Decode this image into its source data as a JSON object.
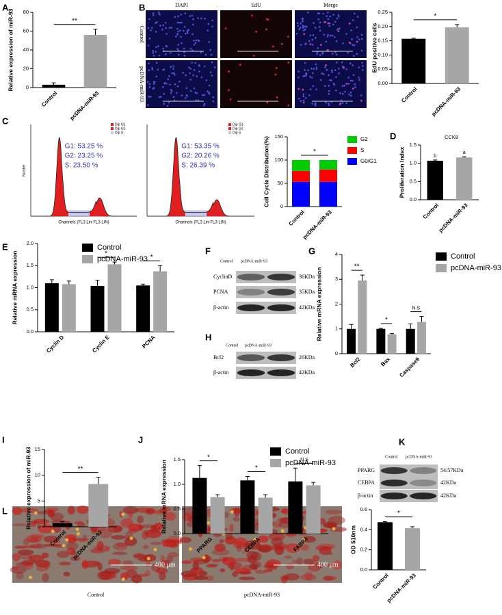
{
  "panel_labels": [
    "A",
    "B",
    "C",
    "D",
    "E",
    "F",
    "G",
    "H",
    "I",
    "J",
    "K",
    "L"
  ],
  "microscopy": {
    "columns": [
      "DAPI",
      "EdU",
      "Merge"
    ],
    "rows": [
      "Control",
      "pcDNA-miR-93"
    ]
  },
  "flow": [
    {
      "legend": [
        "Dip G1",
        "Dip G2",
        "Dip S"
      ],
      "stats": [
        "G1: 53.25 %",
        "G2: 23.25 %",
        "S: 23.50 %"
      ],
      "xlabel": "Channels (FL3 Lin-FL3 LIN)",
      "ylabel": "Number"
    },
    {
      "legend": [
        "Dip G1",
        "Dip G2",
        "Dip S"
      ],
      "stats": [
        "G1: 53.35 %",
        "G2: 20.26 %",
        "S: 26.39 %"
      ],
      "xlabel": "Channels (FL3 Lin-FL3 LIN)"
    }
  ],
  "blots": [
    {
      "header": [
        "Control",
        "pcDNA-miR-93"
      ],
      "rows": [
        {
          "name": "CyclinD",
          "size": "36KDa"
        },
        {
          "name": "PCNA",
          "size": "35KDa"
        },
        {
          "name": "β-actin",
          "size": "42KDa"
        }
      ]
    },
    {
      "header": [
        "Control",
        "pcDNA-miR-93"
      ],
      "rows": [
        {
          "name": "Bcl2",
          "size": "26KDa"
        },
        {
          "name": "β-actin",
          "size": "42KDa"
        }
      ]
    },
    {
      "header": [
        "Control",
        "pcDNA-miR-93"
      ],
      "rows": [
        {
          "name": "PPARG",
          "size": "54/57KDa"
        },
        {
          "name": "CEBPA",
          "size": "42KDa"
        },
        {
          "name": "β-actin",
          "size": "42KDa"
        }
      ]
    }
  ],
  "staining": [
    {
      "scale": "400 μm",
      "caption": "Control"
    },
    {
      "scale": "400 μm",
      "caption": "pcDNA-miR-93"
    }
  ],
  "chart_data": [
    {
      "type": "bar",
      "ylabel": "Relative expression of miR-93",
      "categories": [
        "Control",
        "pcDNA-miR-93"
      ],
      "values": [
        3,
        56
      ],
      "errors": [
        2,
        6
      ],
      "colors": [
        "#000000",
        "#a6a6a6"
      ],
      "ylim": [
        0,
        80
      ],
      "yticks": [
        0,
        20,
        40,
        60,
        80
      ],
      "annotation": "**"
    },
    {
      "type": "bar",
      "ylabel": "EdU positive cells",
      "categories": [
        "Control",
        "pcDNA-miR-93"
      ],
      "values": [
        0.157,
        0.197
      ],
      "errors": [
        0.002,
        0.01
      ],
      "colors": [
        "#000000",
        "#a6a6a6"
      ],
      "ylim": [
        0,
        0.25
      ],
      "yticks": [
        {
          "value": 0,
          "label": "0.00"
        },
        {
          "value": 0.05,
          "label": "0.05"
        },
        {
          "value": 0.1,
          "label": "0.10"
        },
        {
          "value": 0.15,
          "label": "0.15"
        },
        {
          "value": 0.2,
          "label": "0.20"
        },
        {
          "value": 0.25,
          "label": "0.25"
        }
      ],
      "annotation": "*"
    },
    {
      "type": "stacked_bar",
      "ylabel": "Cell Cycle Distribution(%)",
      "categories": [
        "Control",
        "pcDNA-miR-93"
      ],
      "series": [
        {
          "name": "G0/G1",
          "color": "#0000ff",
          "values": [
            53.25,
            53.35
          ]
        },
        {
          "name": "S",
          "color": "#ff0000",
          "values": [
            23.5,
            26.39
          ]
        },
        {
          "name": "G2",
          "color": "#00cc00",
          "values": [
            23.25,
            20.26
          ]
        }
      ],
      "ylim": [
        0,
        150
      ],
      "yticks": [
        0,
        50,
        100,
        150
      ],
      "annotation": "*"
    },
    {
      "type": "bar",
      "title": "CCK8",
      "ylabel": "Proliferation Index",
      "categories": [
        "Control",
        "pcDNA-miR-93"
      ],
      "values": [
        1.07,
        1.16
      ],
      "errors": [
        0.02,
        0.02
      ],
      "colors": [
        "#000000",
        "#a6a6a6"
      ],
      "bar_labels": [
        "b",
        "a"
      ],
      "ylim": [
        0,
        1.5
      ],
      "yticks": [
        {
          "value": 0,
          "label": "0.0"
        },
        0.5,
        {
          "value": 1,
          "label": "1.0"
        },
        1.5
      ]
    },
    {
      "type": "grouped_bar",
      "ylabel": "Relative mRNA expression",
      "categories": [
        "Cyclin D",
        "Cyclin E",
        "PCNA"
      ],
      "series": [
        {
          "name": "Control",
          "color": "#000000",
          "values": [
            1.1,
            1.04,
            1.05
          ],
          "errors": [
            0.08,
            0.13,
            0.03
          ]
        },
        {
          "name": "pcDNA-miR-93",
          "color": "#a6a6a6",
          "values": [
            1.08,
            1.53,
            1.37
          ],
          "errors": [
            0.07,
            0.05,
            0.13
          ]
        }
      ],
      "annotations": [
        null,
        "*",
        "*"
      ],
      "ylim": [
        0,
        2
      ],
      "yticks": [
        {
          "value": 0,
          "label": "0.0"
        },
        0.5,
        {
          "value": 1,
          "label": "1.0"
        },
        1.5,
        {
          "value": 2,
          "label": "2.0"
        }
      ]
    },
    {
      "type": "grouped_bar",
      "ylabel": "Relative mRNA expression",
      "categories": [
        "Bcl2",
        "Bax",
        "Caspase9"
      ],
      "series": [
        {
          "name": "Control",
          "color": "#000000",
          "values": [
            1,
            1,
            1
          ],
          "errors": [
            0.18,
            0.02,
            0.2
          ]
        },
        {
          "name": "pcDNA-miR-93",
          "color": "#a6a6a6",
          "values": [
            2.95,
            0.78,
            1.28
          ],
          "errors": [
            0.22,
            0.03,
            0.22
          ]
        }
      ],
      "annotations": [
        "**",
        "*",
        "N S"
      ],
      "ylim": [
        0,
        4
      ],
      "yticks": [
        0,
        1,
        2,
        3,
        4
      ]
    },
    {
      "type": "bar",
      "ylabel": "Relative expression of miR-93",
      "categories": [
        "Control",
        "pcDNA-miR-93"
      ],
      "values": [
        0.7,
        8.3
      ],
      "errors": [
        0.3,
        1.3
      ],
      "colors": [
        "#000000",
        "#a6a6a6"
      ],
      "ylim": [
        0,
        15
      ],
      "yticks": [
        0,
        5,
        10,
        15
      ],
      "annotation": "**"
    },
    {
      "type": "grouped_bar",
      "ylabel": "Relative mRNA expression",
      "categories": [
        "PPARG",
        "CEBPA",
        "FABP4"
      ],
      "series": [
        {
          "name": "Control",
          "color": "#000000",
          "values": [
            1.13,
            1.08,
            1.06
          ],
          "errors": [
            0.25,
            0.08,
            0.27
          ]
        },
        {
          "name": "pcDNA-miR-93",
          "color": "#a6a6a6",
          "values": [
            0.74,
            0.73,
            0.98
          ],
          "errors": [
            0.05,
            0.06,
            0.06
          ]
        }
      ],
      "annotations": [
        "*",
        "*",
        "N.S"
      ],
      "ylim": [
        0,
        1.5
      ],
      "yticks": [
        {
          "value": 0,
          "label": "0.0"
        },
        0.5,
        {
          "value": 1,
          "label": "1.0"
        },
        1.5
      ]
    },
    {
      "type": "bar",
      "ylabel": "OD 510nm",
      "categories": [
        "Control",
        "pcDNA-miR-93"
      ],
      "values": [
        0.475,
        0.415
      ],
      "errors": [
        0.005,
        0.015
      ],
      "colors": [
        "#000000",
        "#a6a6a6"
      ],
      "ylim": [
        0,
        0.6
      ],
      "yticks": [
        {
          "value": 0,
          "label": "0.0"
        },
        0.2,
        0.4,
        0.6
      ],
      "annotation": "*"
    }
  ]
}
